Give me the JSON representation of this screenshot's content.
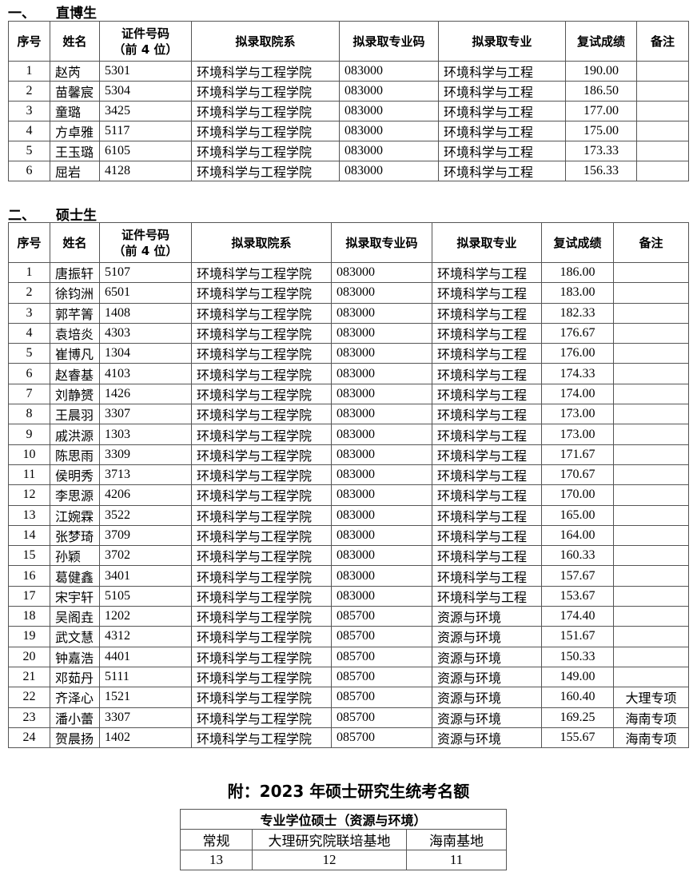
{
  "section1": {
    "number": "一、",
    "title": "直博生"
  },
  "section2": {
    "number": "二、",
    "title": "硕士生"
  },
  "headers": {
    "seq": "序号",
    "name": "姓名",
    "id_line1": "证件号码",
    "id_line2": "（前 4 位）",
    "college": "拟录取院系",
    "major_code": "拟录取专业码",
    "major": "拟录取专业",
    "score": "复试成绩",
    "remark": "备注"
  },
  "table1": [
    {
      "seq": "1",
      "name": "赵芮",
      "id": "5301",
      "college": "环境科学与工程学院",
      "code": "083000",
      "major": "环境科学与工程",
      "score": "190.00",
      "remark": ""
    },
    {
      "seq": "2",
      "name": "苗馨宸",
      "id": "5304",
      "college": "环境科学与工程学院",
      "code": "083000",
      "major": "环境科学与工程",
      "score": "186.50",
      "remark": ""
    },
    {
      "seq": "3",
      "name": "童璐",
      "id": "3425",
      "college": "环境科学与工程学院",
      "code": "083000",
      "major": "环境科学与工程",
      "score": "177.00",
      "remark": ""
    },
    {
      "seq": "4",
      "name": "方卓雅",
      "id": "5117",
      "college": "环境科学与工程学院",
      "code": "083000",
      "major": "环境科学与工程",
      "score": "175.00",
      "remark": ""
    },
    {
      "seq": "5",
      "name": "王玉璐",
      "id": "6105",
      "college": "环境科学与工程学院",
      "code": "083000",
      "major": "环境科学与工程",
      "score": "173.33",
      "remark": ""
    },
    {
      "seq": "6",
      "name": "屈岩",
      "id": "4128",
      "college": "环境科学与工程学院",
      "code": "083000",
      "major": "环境科学与工程",
      "score": "156.33",
      "remark": ""
    }
  ],
  "table2": [
    {
      "seq": "1",
      "name": "唐振轩",
      "id": "5107",
      "college": "环境科学与工程学院",
      "code": "083000",
      "major": "环境科学与工程",
      "score": "186.00",
      "remark": ""
    },
    {
      "seq": "2",
      "name": "徐钧洲",
      "id": "6501",
      "college": "环境科学与工程学院",
      "code": "083000",
      "major": "环境科学与工程",
      "score": "183.00",
      "remark": ""
    },
    {
      "seq": "3",
      "name": "郭芊箐",
      "id": "1408",
      "college": "环境科学与工程学院",
      "code": "083000",
      "major": "环境科学与工程",
      "score": "182.33",
      "remark": ""
    },
    {
      "seq": "4",
      "name": "袁培炎",
      "id": "4303",
      "college": "环境科学与工程学院",
      "code": "083000",
      "major": "环境科学与工程",
      "score": "176.67",
      "remark": ""
    },
    {
      "seq": "5",
      "name": "崔博凡",
      "id": "1304",
      "college": "环境科学与工程学院",
      "code": "083000",
      "major": "环境科学与工程",
      "score": "176.00",
      "remark": ""
    },
    {
      "seq": "6",
      "name": "赵睿基",
      "id": "4103",
      "college": "环境科学与工程学院",
      "code": "083000",
      "major": "环境科学与工程",
      "score": "174.33",
      "remark": ""
    },
    {
      "seq": "7",
      "name": "刘静赟",
      "id": "1426",
      "college": "环境科学与工程学院",
      "code": "083000",
      "major": "环境科学与工程",
      "score": "174.00",
      "remark": ""
    },
    {
      "seq": "8",
      "name": "王晨羽",
      "id": "3307",
      "college": "环境科学与工程学院",
      "code": "083000",
      "major": "环境科学与工程",
      "score": "173.00",
      "remark": ""
    },
    {
      "seq": "9",
      "name": "戚洪源",
      "id": "1303",
      "college": "环境科学与工程学院",
      "code": "083000",
      "major": "环境科学与工程",
      "score": "173.00",
      "remark": ""
    },
    {
      "seq": "10",
      "name": "陈思雨",
      "id": "3309",
      "college": "环境科学与工程学院",
      "code": "083000",
      "major": "环境科学与工程",
      "score": "171.67",
      "remark": ""
    },
    {
      "seq": "11",
      "name": "侯明秀",
      "id": "3713",
      "college": "环境科学与工程学院",
      "code": "083000",
      "major": "环境科学与工程",
      "score": "170.67",
      "remark": ""
    },
    {
      "seq": "12",
      "name": "李思源",
      "id": "4206",
      "college": "环境科学与工程学院",
      "code": "083000",
      "major": "环境科学与工程",
      "score": "170.00",
      "remark": ""
    },
    {
      "seq": "13",
      "name": "江婉霖",
      "id": "3522",
      "college": "环境科学与工程学院",
      "code": "083000",
      "major": "环境科学与工程",
      "score": "165.00",
      "remark": ""
    },
    {
      "seq": "14",
      "name": "张梦琦",
      "id": "3709",
      "college": "环境科学与工程学院",
      "code": "083000",
      "major": "环境科学与工程",
      "score": "164.00",
      "remark": ""
    },
    {
      "seq": "15",
      "name": "孙颖",
      "id": "3702",
      "college": "环境科学与工程学院",
      "code": "083000",
      "major": "环境科学与工程",
      "score": "160.33",
      "remark": ""
    },
    {
      "seq": "16",
      "name": "葛健鑫",
      "id": "3401",
      "college": "环境科学与工程学院",
      "code": "083000",
      "major": "环境科学与工程",
      "score": "157.67",
      "remark": ""
    },
    {
      "seq": "17",
      "name": "宋宇轩",
      "id": "5105",
      "college": "环境科学与工程学院",
      "code": "083000",
      "major": "环境科学与工程",
      "score": "153.67",
      "remark": ""
    },
    {
      "seq": "18",
      "name": "吴阁垚",
      "id": "1202",
      "college": "环境科学与工程学院",
      "code": "085700",
      "major": "资源与环境",
      "score": "174.40",
      "remark": ""
    },
    {
      "seq": "19",
      "name": "武文慧",
      "id": "4312",
      "college": "环境科学与工程学院",
      "code": "085700",
      "major": "资源与环境",
      "score": "151.67",
      "remark": ""
    },
    {
      "seq": "20",
      "name": "钟嘉浩",
      "id": "4401",
      "college": "环境科学与工程学院",
      "code": "085700",
      "major": "资源与环境",
      "score": "150.33",
      "remark": ""
    },
    {
      "seq": "21",
      "name": "邓茹丹",
      "id": "5111",
      "college": "环境科学与工程学院",
      "code": "085700",
      "major": "资源与环境",
      "score": "149.00",
      "remark": ""
    },
    {
      "seq": "22",
      "name": "齐泽心",
      "id": "1521",
      "college": "环境科学与工程学院",
      "code": "085700",
      "major": "资源与环境",
      "score": "160.40",
      "remark": "大理专项"
    },
    {
      "seq": "23",
      "name": "潘小蕾",
      "id": "3307",
      "college": "环境科学与工程学院",
      "code": "085700",
      "major": "资源与环境",
      "score": "169.25",
      "remark": "海南专项"
    },
    {
      "seq": "24",
      "name": "贺晨扬",
      "id": "1402",
      "college": "环境科学与工程学院",
      "code": "085700",
      "major": "资源与环境",
      "score": "155.67",
      "remark": "海南专项"
    }
  ],
  "appendix": {
    "title": "附：2023 年硕士研究生统考名额",
    "header": "专业学位硕士（资源与环境）",
    "columns": [
      "常规",
      "大理研究院联培基地",
      "海南基地"
    ],
    "values": [
      "13",
      "12",
      "11"
    ]
  }
}
